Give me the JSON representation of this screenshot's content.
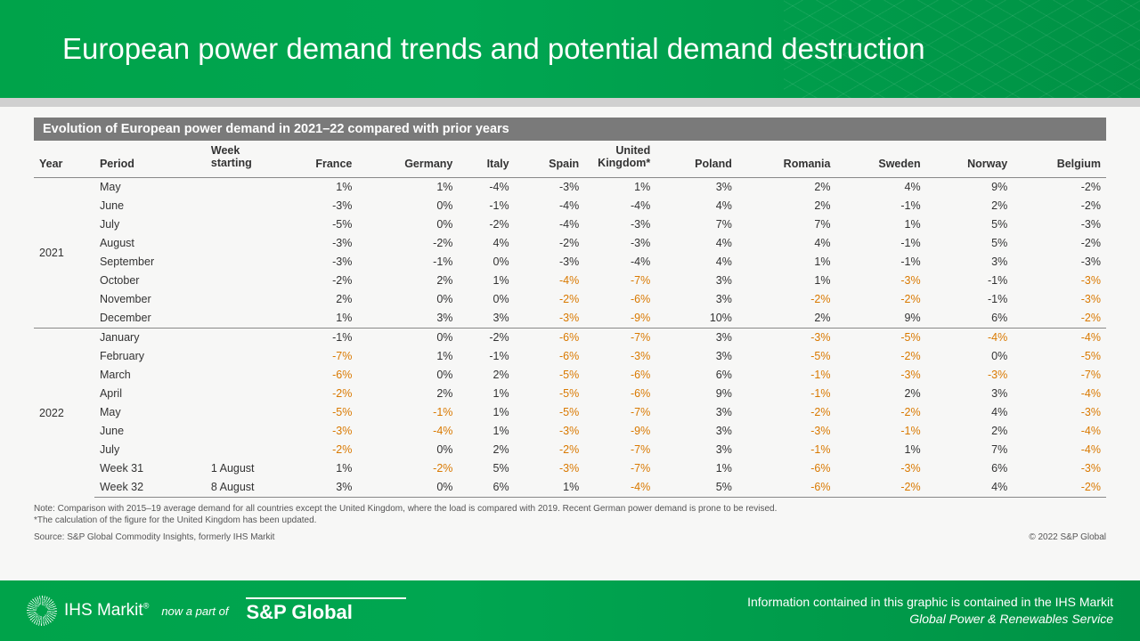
{
  "header": {
    "title": "European power demand trends and potential demand destruction"
  },
  "table": {
    "subtitle": "Evolution of European power demand in 2021–22 compared with prior years",
    "columns": [
      "Year",
      "Period",
      "Week starting",
      "France",
      "Germany",
      "Italy",
      "Spain",
      "United Kingdom*",
      "Poland",
      "Romania",
      "Sweden",
      "Norway",
      "Belgium"
    ],
    "yearGroups": [
      {
        "year": "2021",
        "start": 0,
        "count": 8
      },
      {
        "year": "2022",
        "start": 8,
        "count": 9
      }
    ],
    "rows": [
      {
        "period": "May",
        "week": "",
        "v": [
          {
            "t": "1%"
          },
          {
            "t": "1%"
          },
          {
            "t": "-4%"
          },
          {
            "t": "-3%"
          },
          {
            "t": "1%"
          },
          {
            "t": "3%"
          },
          {
            "t": "2%"
          },
          {
            "t": "4%"
          },
          {
            "t": "9%"
          },
          {
            "t": "-2%"
          }
        ]
      },
      {
        "period": "June",
        "week": "",
        "v": [
          {
            "t": "-3%"
          },
          {
            "t": "0%"
          },
          {
            "t": "-1%"
          },
          {
            "t": "-4%"
          },
          {
            "t": "-4%"
          },
          {
            "t": "4%"
          },
          {
            "t": "2%"
          },
          {
            "t": "-1%"
          },
          {
            "t": "2%"
          },
          {
            "t": "-2%"
          }
        ]
      },
      {
        "period": "July",
        "week": "",
        "v": [
          {
            "t": "-5%"
          },
          {
            "t": "0%"
          },
          {
            "t": "-2%"
          },
          {
            "t": "-4%"
          },
          {
            "t": "-3%"
          },
          {
            "t": "7%"
          },
          {
            "t": "7%"
          },
          {
            "t": "1%"
          },
          {
            "t": "5%"
          },
          {
            "t": "-3%"
          }
        ]
      },
      {
        "period": "August",
        "week": "",
        "v": [
          {
            "t": "-3%"
          },
          {
            "t": "-2%"
          },
          {
            "t": "4%"
          },
          {
            "t": "-2%"
          },
          {
            "t": "-3%"
          },
          {
            "t": "4%"
          },
          {
            "t": "4%"
          },
          {
            "t": "-1%"
          },
          {
            "t": "5%"
          },
          {
            "t": "-2%"
          }
        ]
      },
      {
        "period": "September",
        "week": "",
        "v": [
          {
            "t": "-3%"
          },
          {
            "t": "-1%"
          },
          {
            "t": "0%"
          },
          {
            "t": "-3%"
          },
          {
            "t": "-4%"
          },
          {
            "t": "4%"
          },
          {
            "t": "1%"
          },
          {
            "t": "-1%"
          },
          {
            "t": "3%"
          },
          {
            "t": "-3%"
          }
        ]
      },
      {
        "period": "October",
        "week": "",
        "v": [
          {
            "t": "-2%"
          },
          {
            "t": "2%"
          },
          {
            "t": "1%"
          },
          {
            "t": "-4%",
            "h": 1
          },
          {
            "t": "-7%",
            "h": 1
          },
          {
            "t": "3%"
          },
          {
            "t": "1%"
          },
          {
            "t": "-3%",
            "h": 1
          },
          {
            "t": "-1%"
          },
          {
            "t": "-3%",
            "h": 1
          }
        ]
      },
      {
        "period": "November",
        "week": "",
        "v": [
          {
            "t": "2%"
          },
          {
            "t": "0%"
          },
          {
            "t": "0%"
          },
          {
            "t": "-2%",
            "h": 1
          },
          {
            "t": "-6%",
            "h": 1
          },
          {
            "t": "3%"
          },
          {
            "t": "-2%",
            "h": 1
          },
          {
            "t": "-2%",
            "h": 1
          },
          {
            "t": "-1%"
          },
          {
            "t": "-3%",
            "h": 1
          }
        ]
      },
      {
        "period": "December",
        "week": "",
        "v": [
          {
            "t": "1%"
          },
          {
            "t": "3%"
          },
          {
            "t": "3%"
          },
          {
            "t": "-3%",
            "h": 1
          },
          {
            "t": "-9%",
            "h": 1
          },
          {
            "t": "10%"
          },
          {
            "t": "2%"
          },
          {
            "t": "9%"
          },
          {
            "t": "6%"
          },
          {
            "t": "-2%",
            "h": 1
          }
        ]
      },
      {
        "period": "January",
        "week": "",
        "v": [
          {
            "t": "-1%"
          },
          {
            "t": "0%"
          },
          {
            "t": "-2%"
          },
          {
            "t": "-6%",
            "h": 1
          },
          {
            "t": "-7%",
            "h": 1
          },
          {
            "t": "3%"
          },
          {
            "t": "-3%",
            "h": 1
          },
          {
            "t": "-5%",
            "h": 1
          },
          {
            "t": "-4%",
            "h": 1
          },
          {
            "t": "-4%",
            "h": 1
          }
        ]
      },
      {
        "period": "February",
        "week": "",
        "v": [
          {
            "t": "-7%",
            "h": 1
          },
          {
            "t": "1%"
          },
          {
            "t": "-1%"
          },
          {
            "t": "-6%",
            "h": 1
          },
          {
            "t": "-3%",
            "h": 1
          },
          {
            "t": "3%"
          },
          {
            "t": "-5%",
            "h": 1
          },
          {
            "t": "-2%",
            "h": 1
          },
          {
            "t": "0%"
          },
          {
            "t": "-5%",
            "h": 1
          }
        ]
      },
      {
        "period": "March",
        "week": "",
        "v": [
          {
            "t": "-6%",
            "h": 1
          },
          {
            "t": "0%"
          },
          {
            "t": "2%"
          },
          {
            "t": "-5%",
            "h": 1
          },
          {
            "t": "-6%",
            "h": 1
          },
          {
            "t": "6%"
          },
          {
            "t": "-1%",
            "h": 1
          },
          {
            "t": "-3%",
            "h": 1
          },
          {
            "t": "-3%",
            "h": 1
          },
          {
            "t": "-7%",
            "h": 1
          }
        ]
      },
      {
        "period": "April",
        "week": "",
        "v": [
          {
            "t": "-2%",
            "h": 1
          },
          {
            "t": "2%"
          },
          {
            "t": "1%"
          },
          {
            "t": "-5%",
            "h": 1
          },
          {
            "t": "-6%",
            "h": 1
          },
          {
            "t": "9%"
          },
          {
            "t": "-1%",
            "h": 1
          },
          {
            "t": "2%"
          },
          {
            "t": "3%"
          },
          {
            "t": "-4%",
            "h": 1
          }
        ]
      },
      {
        "period": "May",
        "week": "",
        "v": [
          {
            "t": "-5%",
            "h": 1
          },
          {
            "t": "-1%",
            "h": 1
          },
          {
            "t": "1%"
          },
          {
            "t": "-5%",
            "h": 1
          },
          {
            "t": "-7%",
            "h": 1
          },
          {
            "t": "3%"
          },
          {
            "t": "-2%",
            "h": 1
          },
          {
            "t": "-2%",
            "h": 1
          },
          {
            "t": "4%"
          },
          {
            "t": "-3%",
            "h": 1
          }
        ]
      },
      {
        "period": "June",
        "week": "",
        "v": [
          {
            "t": "-3%",
            "h": 1
          },
          {
            "t": "-4%",
            "h": 1
          },
          {
            "t": "1%"
          },
          {
            "t": "-3%",
            "h": 1
          },
          {
            "t": "-9%",
            "h": 1
          },
          {
            "t": "3%"
          },
          {
            "t": "-3%",
            "h": 1
          },
          {
            "t": "-1%",
            "h": 1
          },
          {
            "t": "2%"
          },
          {
            "t": "-4%",
            "h": 1
          }
        ]
      },
      {
        "period": "July",
        "week": "",
        "v": [
          {
            "t": "-2%",
            "h": 1
          },
          {
            "t": "0%"
          },
          {
            "t": "2%"
          },
          {
            "t": "-2%",
            "h": 1
          },
          {
            "t": "-7%",
            "h": 1
          },
          {
            "t": "3%"
          },
          {
            "t": "-1%",
            "h": 1
          },
          {
            "t": "1%"
          },
          {
            "t": "7%"
          },
          {
            "t": "-4%",
            "h": 1
          }
        ]
      },
      {
        "period": "Week 31",
        "week": "1 August",
        "v": [
          {
            "t": "1%"
          },
          {
            "t": "-2%",
            "h": 1
          },
          {
            "t": "5%"
          },
          {
            "t": "-3%",
            "h": 1
          },
          {
            "t": "-7%",
            "h": 1
          },
          {
            "t": "1%"
          },
          {
            "t": "-6%",
            "h": 1
          },
          {
            "t": "-3%",
            "h": 1
          },
          {
            "t": "6%"
          },
          {
            "t": "-3%",
            "h": 1
          }
        ]
      },
      {
        "period": "Week 32",
        "week": "8 August",
        "v": [
          {
            "t": "3%"
          },
          {
            "t": "0%"
          },
          {
            "t": "6%"
          },
          {
            "t": "1%"
          },
          {
            "t": "-4%",
            "h": 1
          },
          {
            "t": "5%"
          },
          {
            "t": "-6%",
            "h": 1
          },
          {
            "t": "-2%",
            "h": 1
          },
          {
            "t": "4%"
          },
          {
            "t": "-2%",
            "h": 1
          }
        ]
      }
    ],
    "note1": "Note: Comparison with 2015–19 average demand for all countries except the United Kingdom, where the load is compared with 2019. Recent German power demand is prone to be revised.",
    "note2": "*The calculation of the figure for the United Kingdom has been updated.",
    "source": "Source: S&P Global Commodity Insights, formerly IHS Markit",
    "copyright": "© 2022 S&P Global"
  },
  "footer": {
    "ihs": "IHS Markit",
    "reg": "®",
    "nowpart": "now a part of",
    "sp": "S&P Global",
    "info1": "Information contained in this graphic is contained in the IHS Markit",
    "info2": "Global Power & Renewables Service"
  },
  "style": {
    "highlight_color": "#d97900",
    "header_gradient": [
      "#00a34a",
      "#00a651",
      "#009245"
    ],
    "text_color": "#333333"
  }
}
